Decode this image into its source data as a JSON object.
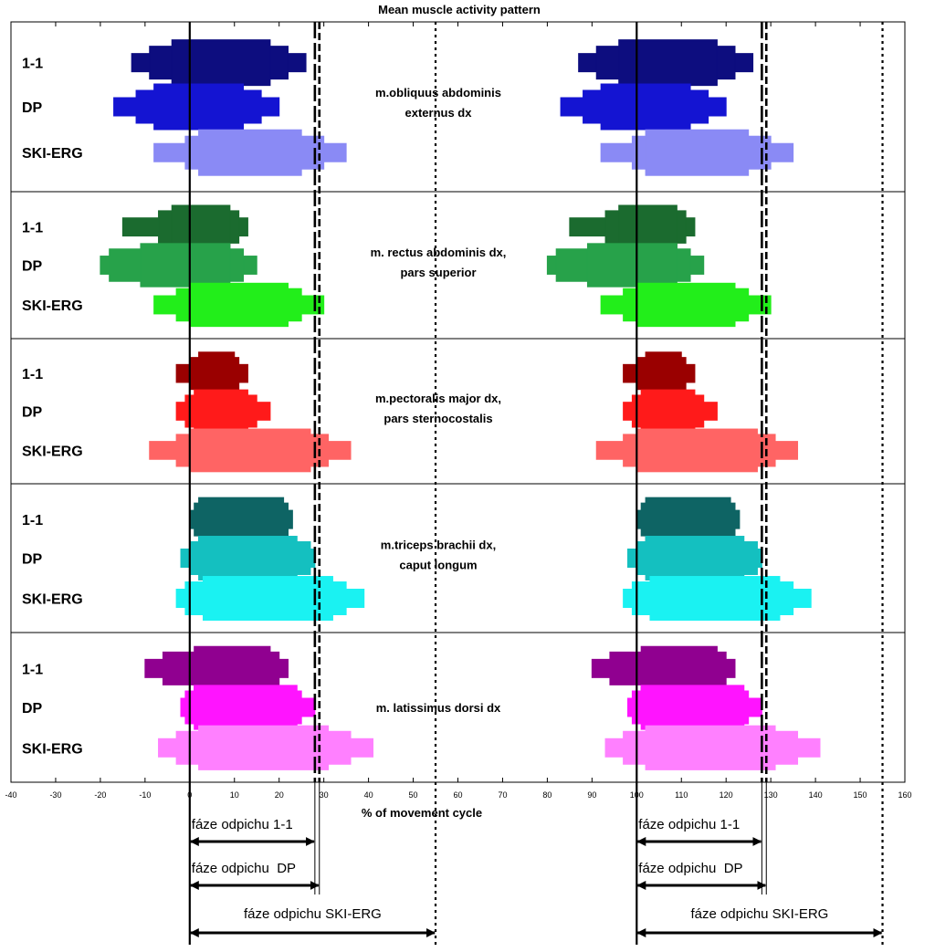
{
  "chart_data": {
    "type": "bar",
    "title": "Mean muscle activity pattern",
    "xlabel": "% of movement cycle",
    "xlim": [
      -40,
      160
    ],
    "xticks": [
      -40,
      -30,
      -20,
      -10,
      0,
      10,
      20,
      30,
      40,
      50,
      60,
      70,
      80,
      90,
      100,
      110,
      120,
      130,
      140,
      150,
      160
    ],
    "series_names": [
      "1-1",
      "DP",
      "SKI-ERG"
    ],
    "vertical_lines": [
      {
        "x": 0,
        "style": "solid"
      },
      {
        "x": 28,
        "style": "long-dash"
      },
      {
        "x": 29,
        "style": "dash"
      },
      {
        "x": 55,
        "style": "dot"
      },
      {
        "x": 100,
        "style": "solid"
      },
      {
        "x": 128,
        "style": "long-dash"
      },
      {
        "x": 129,
        "style": "dash"
      },
      {
        "x": 155,
        "style": "dot"
      }
    ],
    "muscles": [
      {
        "name_lines": [
          "m.obliquus abdominis",
          "externus dx"
        ],
        "colors": [
          "#0d0d7f",
          "#1414d2",
          "#8a8af5"
        ],
        "bars": [
          {
            "levels": [
              [
                -13,
                26
              ],
              [
                -9,
                22
              ],
              [
                -4,
                18
              ]
            ]
          },
          {
            "levels": [
              [
                -17,
                20
              ],
              [
                -12,
                16
              ],
              [
                -8,
                12
              ]
            ]
          },
          {
            "levels": [
              [
                -8,
                35
              ],
              [
                -1,
                30
              ],
              [
                2,
                25
              ]
            ]
          }
        ]
      },
      {
        "name_lines": [
          "m. rectus abdominis dx,",
          "pars superior"
        ],
        "colors": [
          "#1b6b2f",
          "#27a24a",
          "#22ee1a"
        ],
        "bars": [
          {
            "levels": [
              [
                -15,
                13
              ],
              [
                -7,
                11
              ],
              [
                -4,
                9
              ]
            ]
          },
          {
            "levels": [
              [
                -20,
                15
              ],
              [
                -18,
                12
              ],
              [
                -11,
                9
              ]
            ]
          },
          {
            "levels": [
              [
                -8,
                30
              ],
              [
                -3,
                25
              ],
              [
                0,
                22
              ]
            ]
          }
        ]
      },
      {
        "name_lines": [
          "m.pectoralis major dx,",
          "pars sternocostalis"
        ],
        "colors": [
          "#9a0000",
          "#ff1a1a",
          "#ff6464"
        ],
        "bars": [
          {
            "levels": [
              [
                -3,
                13
              ],
              [
                0,
                11
              ],
              [
                2,
                10
              ]
            ]
          },
          {
            "levels": [
              [
                -3,
                18
              ],
              [
                -1,
                15
              ],
              [
                1,
                13
              ]
            ]
          },
          {
            "levels": [
              [
                -9,
                36
              ],
              [
                -3,
                31
              ],
              [
                0,
                27
              ]
            ]
          }
        ]
      },
      {
        "name_lines": [
          "m.triceps brachii dx,",
          "caput longum"
        ],
        "colors": [
          "#0e6464",
          "#14c0c0",
          "#1af2f2"
        ],
        "bars": [
          {
            "levels": [
              [
                0,
                23
              ],
              [
                1,
                22
              ],
              [
                2,
                21
              ]
            ]
          },
          {
            "levels": [
              [
                -2,
                28
              ],
              [
                0,
                27
              ],
              [
                2,
                24
              ]
            ]
          },
          {
            "levels": [
              [
                -3,
                39
              ],
              [
                -1,
                35
              ],
              [
                3,
                32
              ]
            ]
          }
        ]
      },
      {
        "name_lines": [
          "m. latissimus dorsi dx"
        ],
        "colors": [
          "#900090",
          "#ff14ff",
          "#ff80ff"
        ],
        "bars": [
          {
            "levels": [
              [
                -10,
                22
              ],
              [
                -6,
                20
              ],
              [
                1,
                18
              ]
            ]
          },
          {
            "levels": [
              [
                -2,
                28
              ],
              [
                -1,
                25
              ],
              [
                1,
                24
              ]
            ]
          },
          {
            "levels": [
              [
                -7,
                41
              ],
              [
                -3,
                36
              ],
              [
                2,
                31
              ]
            ]
          }
        ]
      }
    ],
    "phase_annotations": [
      {
        "label": "fáze odpichu 1-1",
        "x_start": 0,
        "x_end": 28
      },
      {
        "label": "fáze odpichu  DP",
        "x_start": 0,
        "x_end": 29
      },
      {
        "label": "fáze odpichu SKI-ERG",
        "x_start": 0,
        "x_end": 55
      },
      {
        "label": "fáze odpichu 1-1",
        "x_start": 100,
        "x_end": 128
      },
      {
        "label": "fáze odpichu  DP",
        "x_start": 100,
        "x_end": 129
      },
      {
        "label": "fáze odpichu SKI-ERG",
        "x_start": 100,
        "x_end": 155
      }
    ],
    "grid": false,
    "legend": "none"
  }
}
